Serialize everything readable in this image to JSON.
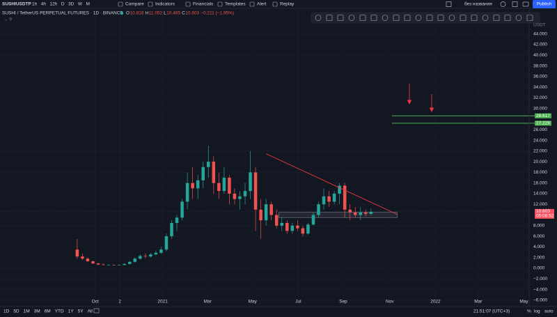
{
  "header": {
    "symbol": "SUSHIUSDTP",
    "intervals": [
      "1h",
      "4h",
      "12h",
      "D",
      "3D",
      "W",
      "M"
    ],
    "menu": [
      "Compare",
      "Indicators",
      "Financials",
      "Templates",
      "Alert",
      "Replay"
    ],
    "layout_name": "без названия",
    "publish": "Publish"
  },
  "legend": {
    "title": "SUSHI / TetherUS PERPETUAL FUTURES · 1D · BINANCE",
    "ohlc": [
      {
        "key": "O",
        "value": "10.816"
      },
      {
        "key": "H",
        "value": "11.052"
      },
      {
        "key": "L",
        "value": "10.465"
      },
      {
        "key": "C",
        "value": "10.603"
      }
    ],
    "change": "−0.211 (−1.95%)"
  },
  "footer": {
    "ranges": [
      "1D",
      "5D",
      "1M",
      "3M",
      "6M",
      "YTD",
      "1Y",
      "5Y",
      "All"
    ],
    "clock": "21:51:07 (UTC+3)",
    "toggles": [
      "%",
      "log",
      "auto"
    ]
  },
  "chart_data": {
    "type": "candlestick",
    "y_unit": "USDT",
    "up_color": "#26a69a",
    "down_color": "#ef5350",
    "grid": true,
    "ylim": [
      -7.2,
      48.8
    ],
    "yticks": [
      {
        "value": 44,
        "label": "44.000"
      },
      {
        "value": 42,
        "label": "42.000"
      },
      {
        "value": 40,
        "label": "40.000"
      },
      {
        "value": 38,
        "label": "38.000"
      },
      {
        "value": 36,
        "label": "36.000"
      },
      {
        "value": 34,
        "label": "34.000"
      },
      {
        "value": 32,
        "label": "32.000"
      },
      {
        "value": 30,
        "label": "30.000"
      },
      {
        "value": 26,
        "label": "26.000"
      },
      {
        "value": 24,
        "label": "24.000"
      },
      {
        "value": 22,
        "label": "22.000"
      },
      {
        "value": 20,
        "label": "20.000"
      },
      {
        "value": 18,
        "label": "18.000"
      },
      {
        "value": 16,
        "label": "16.000"
      },
      {
        "value": 14,
        "label": "14.000"
      },
      {
        "value": 12,
        "label": "12.000"
      },
      {
        "value": 8,
        "label": "8.000"
      },
      {
        "value": 6,
        "label": "6.000"
      },
      {
        "value": 4,
        "label": "4.000"
      },
      {
        "value": 2,
        "label": "2.000"
      },
      {
        "value": 0,
        "label": "0.000"
      },
      {
        "value": -2,
        "label": "−2.000"
      },
      {
        "value": -4,
        "label": "−4.000"
      },
      {
        "value": -6,
        "label": "−6.000"
      }
    ],
    "xlim": [
      -100,
      606
    ],
    "xticks": [
      {
        "value": 27,
        "label": "Oct"
      },
      {
        "value": 60,
        "label": "2"
      },
      {
        "value": 117,
        "label": "2021"
      },
      {
        "value": 177,
        "label": "Mar"
      },
      {
        "value": 237,
        "label": "May"
      },
      {
        "value": 298,
        "label": "Jul"
      },
      {
        "value": 358,
        "label": "Sep"
      },
      {
        "value": 420,
        "label": "Nov"
      },
      {
        "value": 481,
        "label": "2022"
      },
      {
        "value": 538,
        "label": "Mar"
      },
      {
        "value": 599,
        "label": "May"
      }
    ],
    "x": [
      3,
      10,
      17,
      24,
      31,
      38,
      45,
      52,
      59,
      66,
      73,
      80,
      87,
      94,
      101,
      108,
      115,
      122,
      129,
      136,
      143,
      150,
      157,
      164,
      171,
      178,
      185,
      192,
      199,
      206,
      213,
      220,
      227,
      234,
      241,
      248,
      255,
      262,
      269,
      276,
      283,
      290,
      297,
      304,
      311,
      318,
      325,
      332,
      339,
      346,
      353,
      360,
      367,
      374,
      381,
      388,
      395
    ],
    "ohlc": [
      [
        3.5,
        5.5,
        1.8,
        2.2
      ],
      [
        2.2,
        2.8,
        1.5,
        1.8
      ],
      [
        1.8,
        2.0,
        1.2,
        1.3
      ],
      [
        1.3,
        1.4,
        0.8,
        0.9
      ],
      [
        0.9,
        1.0,
        0.6,
        0.7
      ],
      [
        0.7,
        0.9,
        0.55,
        0.6
      ],
      [
        0.6,
        0.8,
        0.5,
        0.6
      ],
      [
        0.6,
        0.7,
        0.5,
        0.55
      ],
      [
        0.55,
        0.7,
        0.5,
        0.6
      ],
      [
        0.6,
        0.9,
        0.55,
        0.8
      ],
      [
        0.8,
        1.3,
        0.7,
        1.2
      ],
      [
        1.2,
        2.0,
        1.0,
        1.8
      ],
      [
        1.8,
        2.6,
        1.6,
        2.3
      ],
      [
        2.3,
        2.8,
        1.9,
        2.2
      ],
      [
        2.2,
        2.9,
        2.0,
        2.6
      ],
      [
        2.6,
        3.3,
        2.4,
        2.9
      ],
      [
        2.9,
        4.0,
        2.7,
        3.5
      ],
      [
        3.5,
        6.5,
        3.2,
        6.0
      ],
      [
        6.0,
        9.0,
        5.5,
        8.5
      ],
      [
        8.5,
        10,
        7,
        9.5
      ],
      [
        9.5,
        13,
        9,
        12.5
      ],
      [
        12.5,
        18,
        11,
        16
      ],
      [
        16,
        19,
        13,
        15
      ],
      [
        15,
        17.5,
        13,
        16.5
      ],
      [
        16.5,
        20,
        15,
        19
      ],
      [
        19,
        23,
        17,
        20
      ],
      [
        20,
        21,
        14,
        16
      ],
      [
        16,
        18,
        13,
        14.5
      ],
      [
        14.5,
        19,
        14,
        17
      ],
      [
        17,
        17.5,
        12,
        14
      ],
      [
        14,
        15,
        12,
        13
      ],
      [
        13,
        14.5,
        11,
        13.5
      ],
      [
        13.5,
        16,
        12,
        14.5
      ],
      [
        14.5,
        22,
        13,
        18
      ],
      [
        18,
        19,
        7,
        11
      ],
      [
        11,
        13,
        5.5,
        9
      ],
      [
        9,
        13,
        8,
        12
      ],
      [
        12,
        12.5,
        9,
        10
      ],
      [
        10,
        11,
        7.5,
        8
      ],
      [
        8,
        9.5,
        7,
        8.5
      ],
      [
        8.5,
        9,
        6.5,
        7
      ],
      [
        7,
        8.5,
        6.5,
        8
      ],
      [
        8,
        9,
        7,
        7.5
      ],
      [
        7.5,
        8,
        6,
        6.5
      ],
      [
        6.5,
        8.5,
        6.3,
        8.2
      ],
      [
        8.2,
        10.5,
        8,
        10
      ],
      [
        10,
        12.5,
        9.5,
        12
      ],
      [
        12,
        15,
        11,
        13.5
      ],
      [
        13.5,
        14.5,
        11.5,
        12.5
      ],
      [
        12.5,
        14.5,
        12,
        14
      ],
      [
        14,
        16,
        12,
        15.5
      ],
      [
        15.5,
        16,
        9.5,
        11
      ],
      [
        11,
        12,
        9,
        10.5
      ],
      [
        10.5,
        11.5,
        9.5,
        10
      ],
      [
        10,
        11.5,
        9,
        10.5
      ],
      [
        10.5,
        11,
        9.8,
        10.2
      ],
      [
        10.2,
        11.2,
        10,
        10.6
      ]
    ],
    "trendline": {
      "x": [
        255,
        430
      ],
      "y": [
        21.5,
        10.1
      ],
      "color": "#f23645"
    },
    "zone": {
      "x": [
        272,
        430
      ],
      "y": [
        9.5,
        10.5
      ]
    },
    "levels": [
      {
        "value": 28.617,
        "label": "28.617",
        "from": 423,
        "color": "#4caf50"
      },
      {
        "value": 27.229,
        "label": "27.229",
        "from": 423,
        "color": "#4caf50"
      }
    ],
    "last_price": {
      "value": 10.603,
      "label": "10.603",
      "countdown": "05:08:52",
      "color": "#f7525f"
    }
  }
}
